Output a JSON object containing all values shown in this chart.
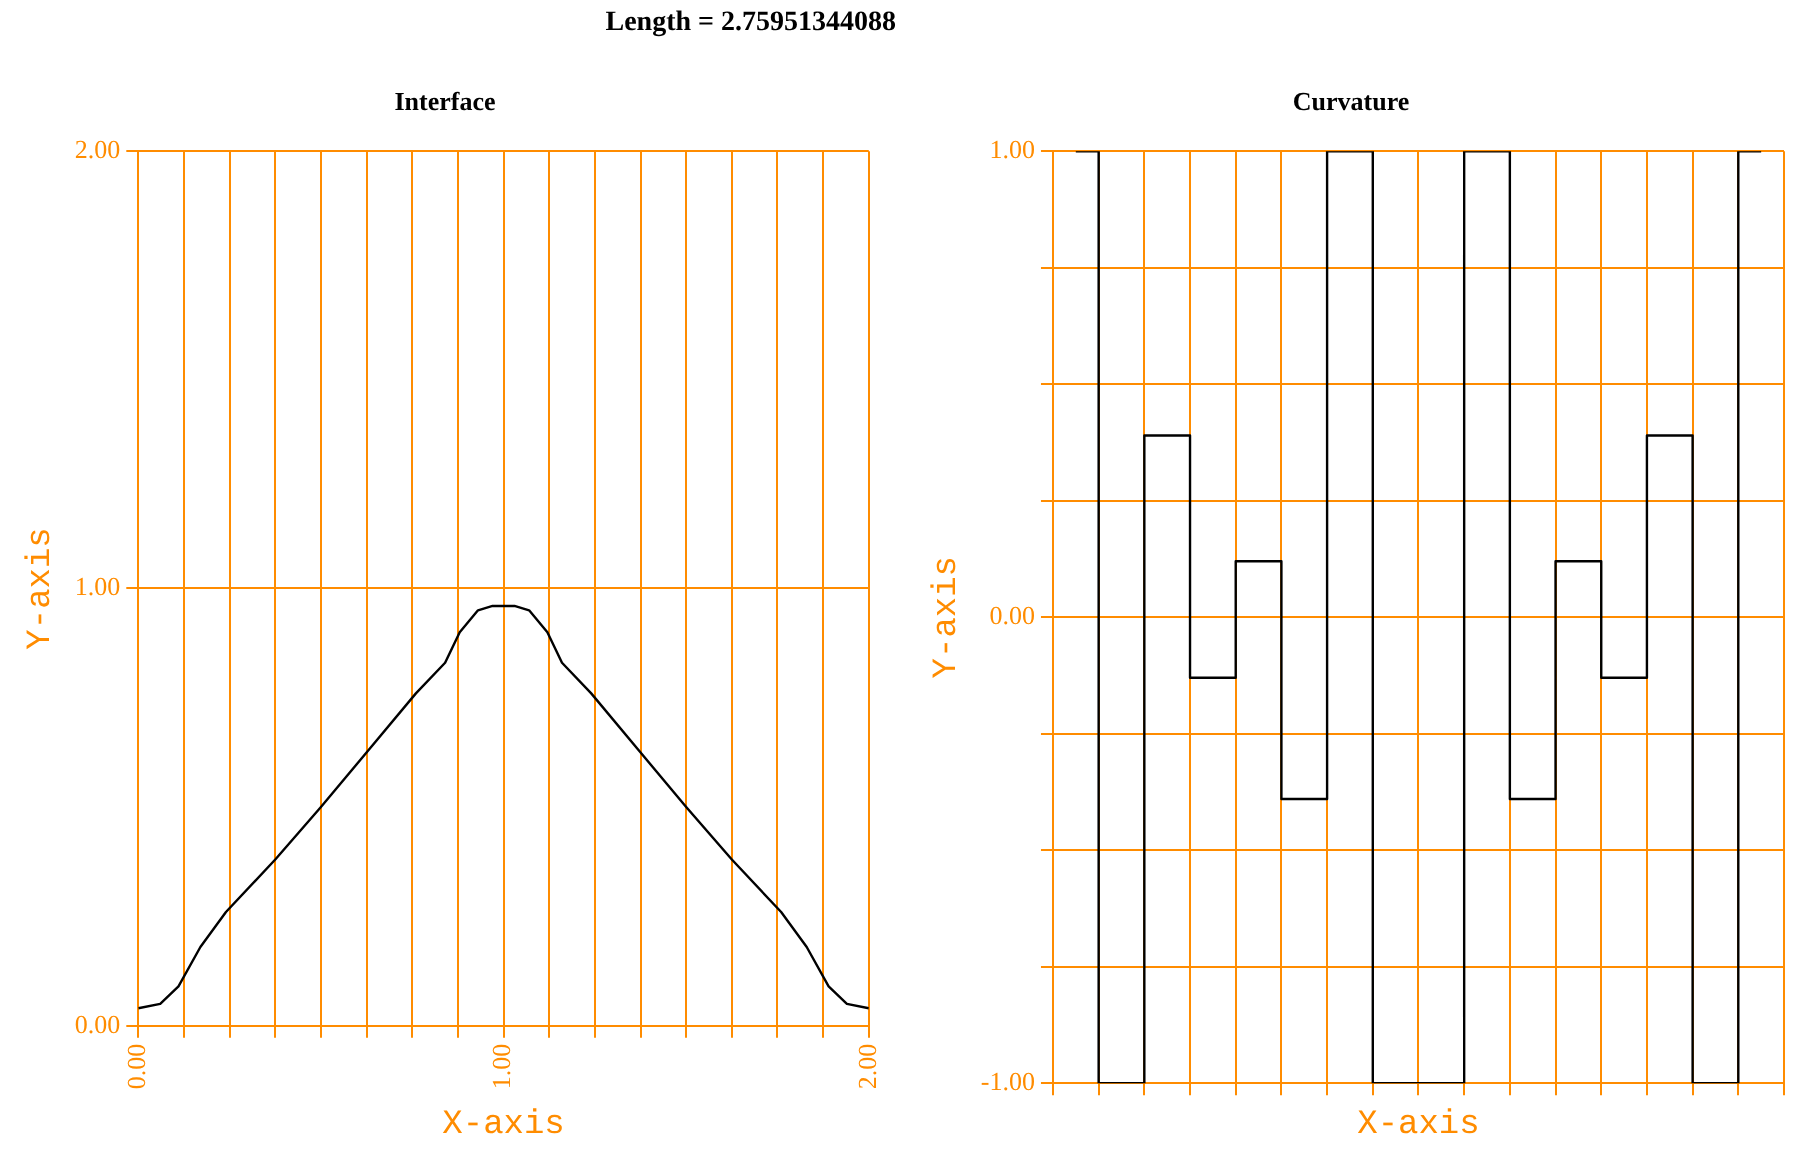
{
  "chart_data": [
    {
      "type": "line",
      "title": "Interface",
      "xlabel": "X-axis",
      "ylabel": "Y-axis",
      "annotations": [
        "Length = 2.75951344088"
      ],
      "xlim": [
        0,
        2
      ],
      "ylim": [
        0,
        2
      ],
      "xticks": [
        {
          "value": 0,
          "label": "0.00"
        },
        {
          "value": 0.125,
          "label": null
        },
        {
          "value": 0.25,
          "label": null
        },
        {
          "value": 0.375,
          "label": null
        },
        {
          "value": 0.5,
          "label": null
        },
        {
          "value": 0.625,
          "label": null
        },
        {
          "value": 0.75,
          "label": null
        },
        {
          "value": 0.875,
          "label": null
        },
        {
          "value": 1,
          "label": "1.00"
        },
        {
          "value": 1.125,
          "label": null
        },
        {
          "value": 1.25,
          "label": null
        },
        {
          "value": 1.375,
          "label": null
        },
        {
          "value": 1.5,
          "label": null
        },
        {
          "value": 1.625,
          "label": null
        },
        {
          "value": 1.75,
          "label": null
        },
        {
          "value": 1.875,
          "label": null
        },
        {
          "value": 2,
          "label": "2.00"
        }
      ],
      "yticks": [
        {
          "value": 0,
          "label": "0.00"
        },
        {
          "value": 1,
          "label": "1.00"
        },
        {
          "value": 2,
          "label": "2.00"
        }
      ],
      "grid": true,
      "series": [
        {
          "color": "#000000",
          "x": [
            0,
            0.06,
            0.11,
            0.17,
            0.24,
            0.375,
            0.5,
            0.63,
            0.76,
            0.84,
            0.88,
            0.93,
            0.97,
            1,
            1.03,
            1.07,
            1.12,
            1.16,
            1.24,
            1.37,
            1.5,
            1.625,
            1.76,
            1.83,
            1.89,
            1.94,
            2
          ],
          "values": [
            0.04,
            0.05,
            0.09,
            0.18,
            0.26,
            0.38,
            0.5,
            0.63,
            0.76,
            0.83,
            0.9,
            0.95,
            0.96,
            0.96,
            0.96,
            0.95,
            0.9,
            0.83,
            0.76,
            0.63,
            0.5,
            0.38,
            0.26,
            0.18,
            0.09,
            0.05,
            0.04
          ]
        }
      ]
    },
    {
      "type": "step",
      "title": "Curvature",
      "xlabel": "X-axis",
      "ylabel": "Y-axis",
      "ylim": [
        -1,
        1
      ],
      "tick_labels": "y",
      "categories": [
        null,
        null,
        null,
        null,
        null,
        null,
        null,
        null,
        null,
        null,
        null,
        null,
        null,
        null,
        null,
        null
      ],
      "yticks": [
        {
          "value": -1,
          "label": "-1.00"
        },
        {
          "value": -0.75,
          "label": null
        },
        {
          "value": -0.5,
          "label": null
        },
        {
          "value": -0.25,
          "label": null
        },
        {
          "value": 0,
          "label": "0.00"
        },
        {
          "value": 0.25,
          "label": null
        },
        {
          "value": 0.5,
          "label": null
        },
        {
          "value": 0.75,
          "label": null
        },
        {
          "value": 1,
          "label": "1.00"
        }
      ],
      "grid": true,
      "series": [
        {
          "color": "#000000",
          "values": [
            1,
            -1,
            0.39,
            -0.13,
            0.12,
            -0.39,
            1,
            -1,
            -1,
            1,
            -0.39,
            0.12,
            -0.13,
            0.39,
            -1,
            1
          ]
        }
      ]
    }
  ]
}
